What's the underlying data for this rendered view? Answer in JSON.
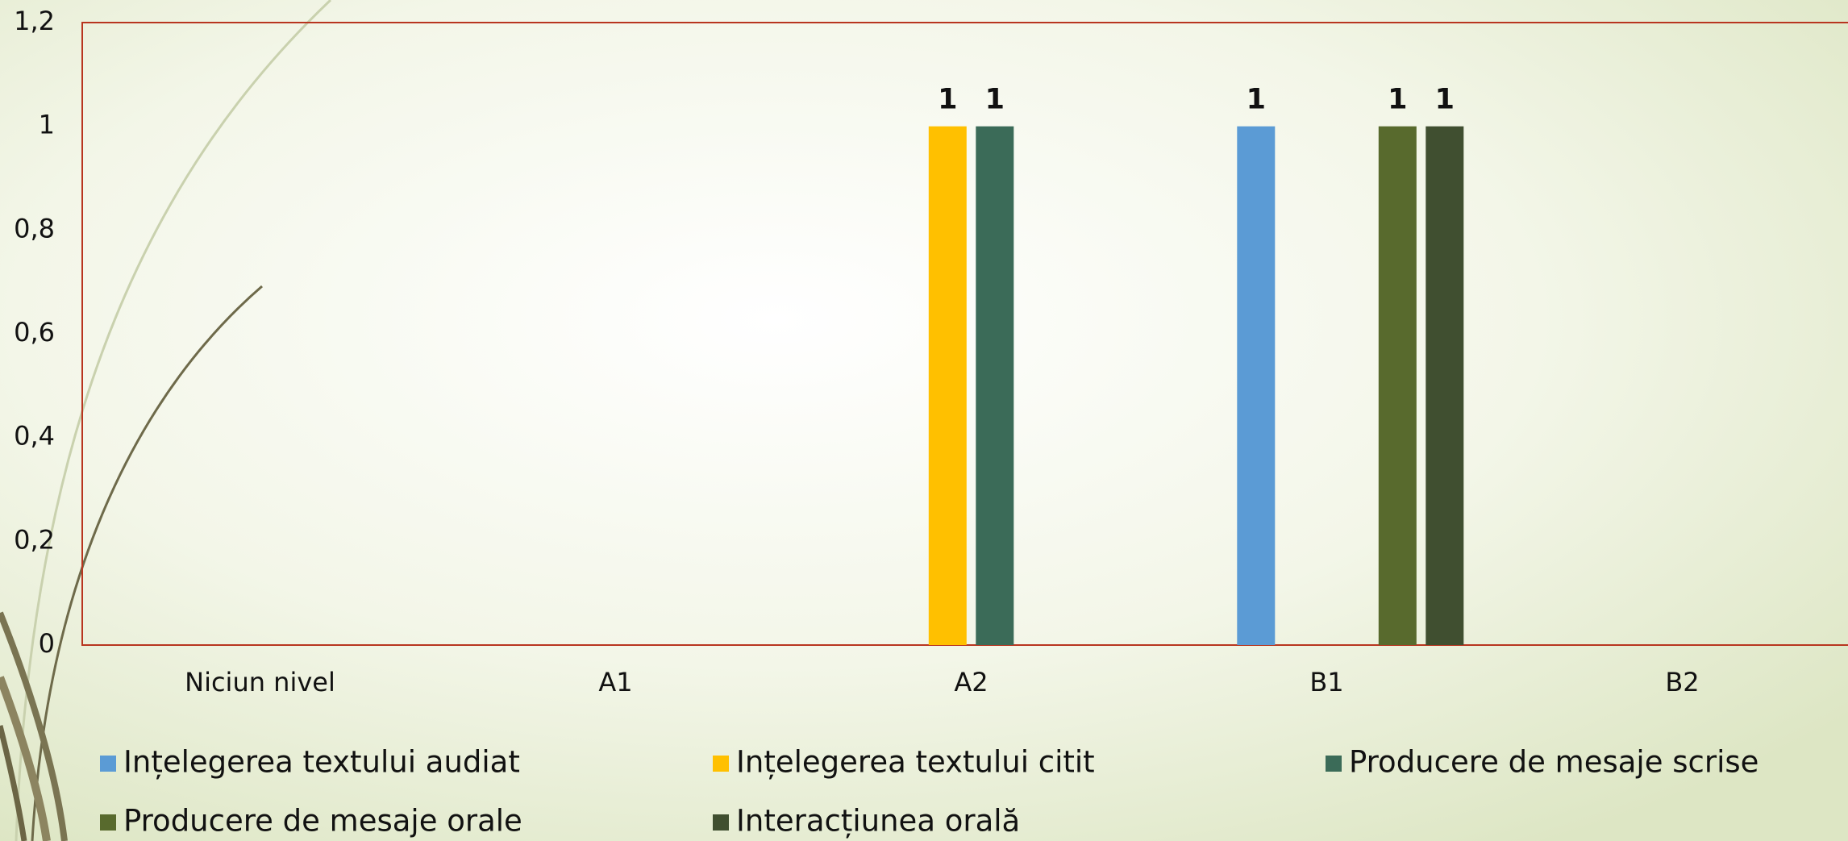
{
  "chart_data": {
    "type": "bar",
    "categories": [
      "Niciun nivel",
      "A1",
      "A2",
      "B1",
      "B2"
    ],
    "series": [
      {
        "name": "Ințelegerea textului audiat",
        "color": "#5b9bd5",
        "values": [
          null,
          null,
          null,
          1,
          null
        ]
      },
      {
        "name": "Ințelegerea textului citit",
        "color": "#ffc000",
        "values": [
          null,
          null,
          1,
          null,
          null
        ]
      },
      {
        "name": "Producere de mesaje scrise",
        "color": "#3b6b58",
        "values": [
          null,
          null,
          1,
          null,
          null
        ]
      },
      {
        "name": "Producere de mesaje orale",
        "color": "#586a2d",
        "values": [
          null,
          null,
          null,
          1,
          null
        ]
      },
      {
        "name": "Interacțiunea orală",
        "color": "#404f30",
        "values": [
          null,
          null,
          null,
          1,
          null
        ]
      }
    ],
    "ylim": [
      0,
      1.2
    ],
    "yticks": [
      0,
      {
        "value": 0.2,
        "label": "0,2"
      },
      {
        "value": 0.4,
        "label": "0,4"
      },
      {
        "value": 0.6,
        "label": "0,6"
      },
      {
        "value": 0.8,
        "label": "0,8"
      },
      1,
      {
        "value": 1.2,
        "label": "1,2"
      }
    ],
    "grid": false,
    "legend": "bottom"
  }
}
